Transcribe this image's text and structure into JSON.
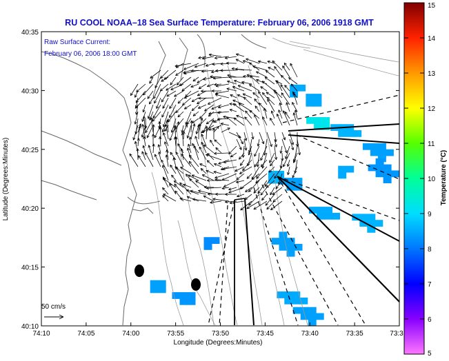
{
  "chart_data": {
    "type": "heatmap",
    "title": "RU COOL  NOAA–18  Sea Surface Temperature:  February 06, 2006 1918 GMT",
    "annotation": [
      "Raw Surface Current:",
      "February 06, 2006 18:00 GMT"
    ],
    "xlabel": "Longitude (Degrees:Minutes)",
    "ylabel": "Latitude (Degrees:Minutes)",
    "x_ticks": [
      "74:10",
      "74:05",
      "74:00",
      "73:55",
      "73:50",
      "73:45",
      "73:40",
      "73:35",
      "73:3"
    ],
    "y_ticks": [
      "40:35",
      "40:30",
      "40:25",
      "40:20",
      "40:15",
      "40:10"
    ],
    "xlim": [
      -74.1667,
      -73.5
    ],
    "ylim": [
      40.1667,
      40.5833
    ],
    "colorbar": {
      "label": "Temperature (°C)",
      "ticks": [
        "15",
        "14",
        "13",
        "12",
        "11",
        "10",
        "9",
        "8",
        "7",
        "6",
        "5"
      ],
      "range": [
        5,
        15
      ]
    },
    "scale_label": "50 cm/s",
    "temperature_patches": [
      {
        "lon": -73.69,
        "lat": 40.503,
        "value": 8.5
      },
      {
        "lon": -73.66,
        "lat": 40.49,
        "value": 8.5
      },
      {
        "lon": -73.645,
        "lat": 40.457,
        "value": 9.2
      },
      {
        "lon": -73.6,
        "lat": 40.447,
        "value": 8.6
      },
      {
        "lon": -73.54,
        "lat": 40.42,
        "value": 8.4
      },
      {
        "lon": -73.53,
        "lat": 40.39,
        "value": 8.3
      },
      {
        "lon": -73.6,
        "lat": 40.388,
        "value": 8.5
      },
      {
        "lon": -73.73,
        "lat": 40.381,
        "value": 8.6
      },
      {
        "lon": -73.696,
        "lat": 40.371,
        "value": 8.4
      },
      {
        "lon": -73.64,
        "lat": 40.33,
        "value": 8.5
      },
      {
        "lon": -73.56,
        "lat": 40.32,
        "value": 8.6
      },
      {
        "lon": -73.71,
        "lat": 40.286,
        "value": 8.4
      },
      {
        "lon": -73.85,
        "lat": 40.287,
        "value": 8.2
      },
      {
        "lon": -73.95,
        "lat": 40.226,
        "value": 8.4
      },
      {
        "lon": -73.895,
        "lat": 40.209,
        "value": 8.3
      },
      {
        "lon": -73.7,
        "lat": 40.21,
        "value": 8.5
      },
      {
        "lon": -73.67,
        "lat": 40.188,
        "value": 8.4
      }
    ]
  }
}
